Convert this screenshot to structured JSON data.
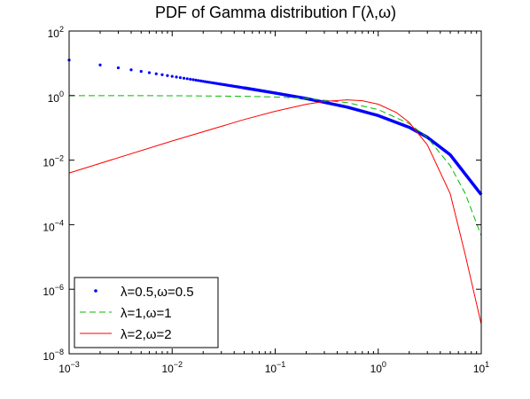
{
  "chart_data": {
    "type": "line",
    "title": "PDF of Gamma distribution Γ(λ,ω)",
    "xlabel": "",
    "ylabel": "",
    "xscale": "log",
    "yscale": "log",
    "xlim": [
      0.001,
      10
    ],
    "ylim": [
      1e-08,
      100
    ],
    "x_ticks": [
      {
        "value": 0.001,
        "base": "10",
        "exp": "−3"
      },
      {
        "value": 0.01,
        "base": "10",
        "exp": "−2"
      },
      {
        "value": 0.1,
        "base": "10",
        "exp": "−1"
      },
      {
        "value": 1,
        "base": "10",
        "exp": "0"
      },
      {
        "value": 10,
        "base": "10",
        "exp": "1"
      }
    ],
    "y_ticks": [
      {
        "value": 1e-08,
        "base": "10",
        "exp": "−8"
      },
      {
        "value": 1e-06,
        "base": "10",
        "exp": "−6"
      },
      {
        "value": 0.0001,
        "base": "10",
        "exp": "−4"
      },
      {
        "value": 0.01,
        "base": "10",
        "exp": "−2"
      },
      {
        "value": 1,
        "base": "10",
        "exp": "0"
      },
      {
        "value": 100,
        "base": "10",
        "exp": "2"
      }
    ],
    "grid": false,
    "legend_position": "bottom-left",
    "series": [
      {
        "name": "λ=0.5,ω=0.5",
        "color": "#0000ff",
        "style": "dotted-markers-then-thick-line",
        "x": [
          0.001,
          0.002,
          0.003,
          0.005,
          0.01,
          0.02,
          0.05,
          0.1,
          0.2,
          0.5,
          1,
          2,
          3,
          5,
          10
        ],
        "y": [
          12.61,
          8.91,
          7.27,
          5.63,
          3.95,
          2.77,
          1.73,
          1.2,
          0.81,
          0.44,
          0.24,
          0.104,
          0.051,
          0.0146,
          0.00085
        ]
      },
      {
        "name": "λ=1,ω=1",
        "color": "#00bb00",
        "style": "dashed",
        "x": [
          0.001,
          0.01,
          0.05,
          0.1,
          0.2,
          0.5,
          1,
          2,
          3,
          5,
          7,
          10
        ],
        "y": [
          0.999,
          0.99,
          0.951,
          0.905,
          0.819,
          0.607,
          0.368,
          0.135,
          0.0498,
          0.00674,
          0.000912,
          4.54e-05
        ]
      },
      {
        "name": "λ=2,ω=2",
        "color": "#ff0000",
        "style": "solid",
        "x": [
          0.001,
          0.01,
          0.05,
          0.1,
          0.2,
          0.3,
          0.5,
          0.7,
          1,
          1.5,
          2,
          3,
          5,
          7,
          10
        ],
        "y": [
          0.004,
          0.0392,
          0.181,
          0.327,
          0.536,
          0.659,
          0.736,
          0.691,
          0.541,
          0.299,
          0.147,
          0.0297,
          0.000908,
          1.16e-05,
          8.24e-08
        ]
      }
    ]
  }
}
